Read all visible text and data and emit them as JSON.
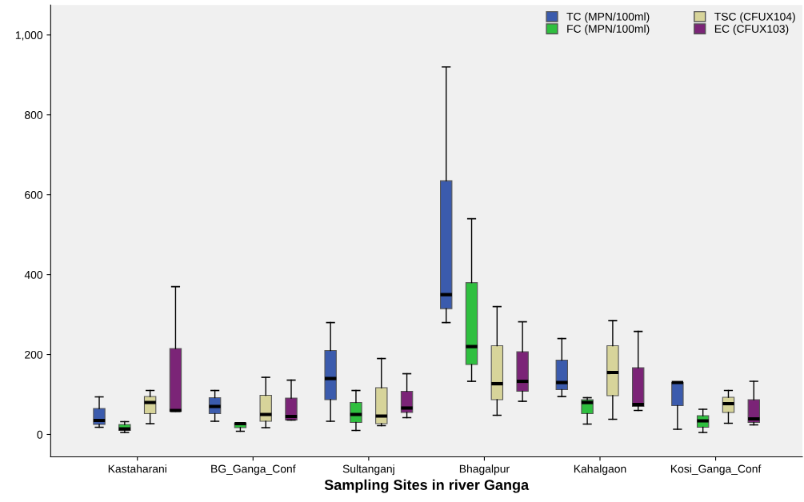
{
  "chart_data": {
    "type": "box",
    "xlabel": "Sampling Sites in river Ganga",
    "categories": [
      "Kastaharani",
      "BG_Ganga_Conf",
      "Sultanganj",
      "Bhagalpur",
      "Kahalgaon",
      "Kosi_Ganga_Conf"
    ],
    "ylim": [
      -56,
      1075
    ],
    "yticks": [
      0,
      200,
      400,
      600,
      800,
      {
        "value": 1000,
        "label": "1,000"
      }
    ],
    "grid": false,
    "legend": "top right",
    "series": [
      {
        "name": "TC (MPN/100ml)",
        "color": "#3b5bad",
        "boxes": [
          {
            "low": 18,
            "q1": 25,
            "median": 35,
            "q3": 65,
            "high": 94
          },
          {
            "low": 33,
            "q1": 52,
            "median": 70,
            "q3": 92,
            "high": 110
          },
          {
            "low": 33,
            "q1": 87,
            "median": 140,
            "q3": 210,
            "high": 280
          },
          {
            "low": 280,
            "q1": 315,
            "median": 350,
            "q3": 635,
            "high": 920
          },
          {
            "low": 95,
            "q1": 112,
            "median": 130,
            "q3": 186,
            "high": 240
          },
          {
            "low": 13,
            "q1": 72,
            "median": 130,
            "q3": 130,
            "high": 130
          }
        ]
      },
      {
        "name": "FC (MPN/100ml)",
        "color": "#2fbf3f",
        "boxes": [
          {
            "low": 5,
            "q1": 10,
            "median": 14,
            "q3": 25,
            "high": 32
          },
          {
            "low": 8,
            "q1": 17,
            "median": 27,
            "q3": 28,
            "high": 28
          },
          {
            "low": 10,
            "q1": 30,
            "median": 50,
            "q3": 80,
            "high": 110
          },
          {
            "low": 133,
            "q1": 175,
            "median": 220,
            "q3": 380,
            "high": 540
          },
          {
            "low": 26,
            "q1": 52,
            "median": 80,
            "q3": 87,
            "high": 92
          },
          {
            "low": 5,
            "q1": 18,
            "median": 34,
            "q3": 47,
            "high": 63
          }
        ]
      },
      {
        "name": "TSC (CFUX104)",
        "color": "#d7d49a",
        "boxes": [
          {
            "low": 27,
            "q1": 52,
            "median": 80,
            "q3": 95,
            "high": 110
          },
          {
            "low": 17,
            "q1": 33,
            "median": 50,
            "q3": 98,
            "high": 143
          },
          {
            "low": 22,
            "q1": 27,
            "median": 46,
            "q3": 117,
            "high": 190
          },
          {
            "low": 48,
            "q1": 87,
            "median": 127,
            "q3": 222,
            "high": 320
          },
          {
            "low": 38,
            "q1": 97,
            "median": 155,
            "q3": 222,
            "high": 285
          },
          {
            "low": 28,
            "q1": 55,
            "median": 77,
            "q3": 93,
            "high": 110
          }
        ]
      },
      {
        "name": "EC (CFUX103)",
        "color": "#7b2477",
        "boxes": [
          {
            "low": 58,
            "q1": 58,
            "median": 60,
            "q3": 215,
            "high": 370
          },
          {
            "low": 36,
            "q1": 36,
            "median": 45,
            "q3": 91,
            "high": 136
          },
          {
            "low": 42,
            "q1": 55,
            "median": 66,
            "q3": 108,
            "high": 152
          },
          {
            "low": 83,
            "q1": 108,
            "median": 133,
            "q3": 207,
            "high": 282
          },
          {
            "low": 60,
            "q1": 70,
            "median": 75,
            "q3": 167,
            "high": 258
          },
          {
            "low": 24,
            "q1": 30,
            "median": 39,
            "q3": 87,
            "high": 133
          }
        ]
      }
    ]
  }
}
